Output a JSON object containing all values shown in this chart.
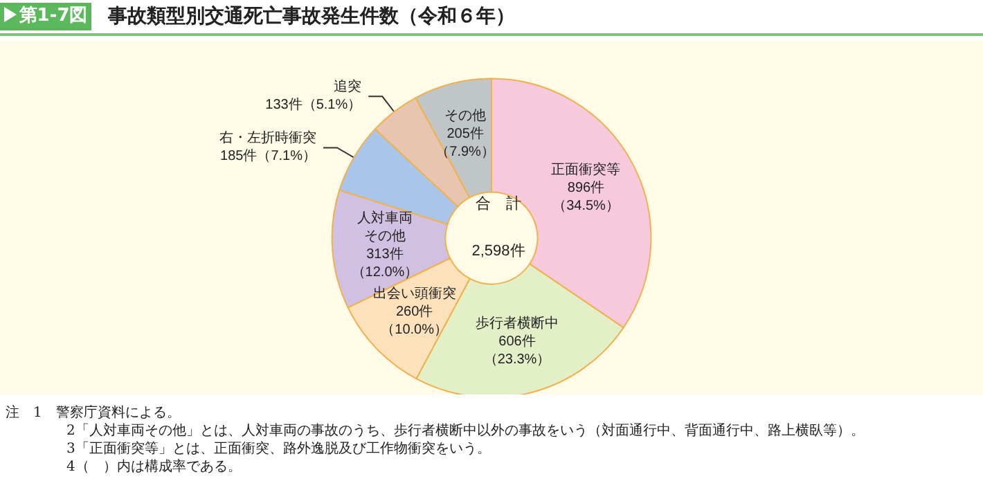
{
  "chart_data": {
    "type": "donut",
    "title": "事故類型別交通死亡事故発生件数（令和６年）",
    "subtitle": "第1-7図",
    "categories": [
      "正面衝突等",
      "歩行者横断中",
      "出会い頭衝突",
      "人対車両その他",
      "右・左折時衝突",
      "追突",
      "その他"
    ],
    "values": [
      896,
      606,
      260,
      313,
      185,
      133,
      205
    ],
    "colors": [
      "#f7c9dd",
      "#e3efc6",
      "#fde1ba",
      "#d0c0e1",
      "#a9c5e9",
      "#e8c5b1",
      "#c0c5c7"
    ],
    "value_labels": [
      "896件（34.5%）",
      "606件（23.3%）",
      "260件（10.0%）",
      "313件（12.0%）",
      "185件（7.1%）",
      "133件（5.1%）",
      "205件（7.9%）"
    ],
    "annotations": [
      "合　計",
      "2,598件",
      "注　1　警察庁資料による。",
      "2「人対車両その他」とは、人対車両の事故のうち、歩行者横断中以外の事故をいう（対面通行中、背面通行中、路上横臥等）。",
      "3「正面衝突等」とは、正面衝突、路外逸脱及び工作物衝突をいう。",
      "4（　）内は構成率である。"
    ],
    "legend": false
  }
}
